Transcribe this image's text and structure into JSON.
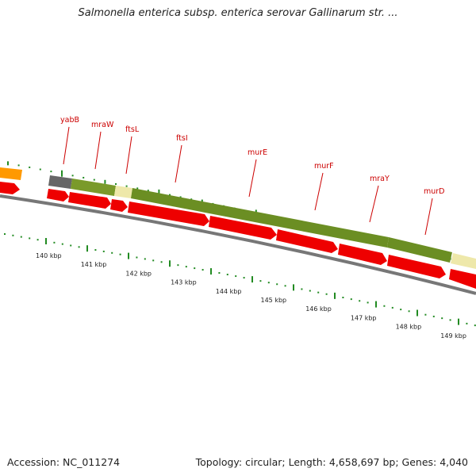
{
  "title": "Salmonella enterica subsp. enterica serovar Gallinarum str. ...",
  "footer": {
    "accession": "Accession: NC_011274",
    "topology": "Topology: circular; Length: 4,658,697 bp; Genes: 4,040"
  },
  "colors": {
    "gene_label": "#cc0000",
    "cds_arrow": "#ee0000",
    "cog_green": "#6b8e23",
    "cog_olive": "#8a9a2a",
    "cog_yellow": "#eee8aa",
    "cog_gray": "#666666",
    "cog_orange": "#ff9900",
    "backbone": "#888888",
    "tick": "#228b22"
  },
  "genes": [
    {
      "name": "yabB"
    },
    {
      "name": "mraW"
    },
    {
      "name": "ftsL"
    },
    {
      "name": "ftsI"
    },
    {
      "name": "murE"
    },
    {
      "name": "murF"
    },
    {
      "name": "mraY"
    },
    {
      "name": "murD"
    }
  ],
  "kbp_ticks": [
    "140 kbp",
    "141 kbp",
    "142 kbp",
    "143 kbp",
    "144 kbp",
    "145 kbp",
    "146 kbp",
    "147 kbp",
    "148 kbp",
    "149 kbp"
  ]
}
